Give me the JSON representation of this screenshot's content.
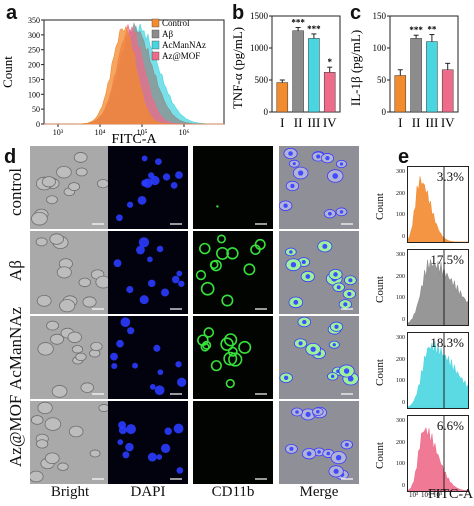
{
  "panels": {
    "a": {
      "label": "a",
      "ylabel": "Count",
      "xlabel": "FITC-A",
      "yticks": [
        "350",
        "300",
        "250",
        "200",
        "150",
        "100",
        "50",
        "0"
      ],
      "xticks": [
        "10³",
        "10⁴",
        "10⁵",
        "10⁶"
      ],
      "legend": [
        {
          "text": "Control",
          "color": "#f28a2e"
        },
        {
          "text": "Aβ",
          "color": "#8c8c8c"
        },
        {
          "text": "AcManNAz",
          "color": "#49d6e0"
        },
        {
          "text": "Az@MOF",
          "color": "#ee6b8a"
        }
      ]
    },
    "b": {
      "label": "b",
      "ylabel": "TNF-α (pg/mL)",
      "yticks": [
        "1500",
        "1000",
        "500",
        "0"
      ],
      "categories": [
        "I",
        "II",
        "III",
        "IV"
      ],
      "values": [
        460,
        1270,
        1150,
        620
      ],
      "errors": [
        40,
        50,
        70,
        80
      ],
      "stars": [
        "",
        "***",
        "***",
        "*"
      ],
      "colors": [
        "#f28a2e",
        "#8c8c8c",
        "#49d6e0",
        "#ee6b8a"
      ],
      "ylim": [
        0,
        1500
      ]
    },
    "c": {
      "label": "c",
      "ylabel": "IL-1β (pg/mL)",
      "yticks": [
        "150",
        "100",
        "50",
        "0"
      ],
      "categories": [
        "I",
        "II",
        "III",
        "IV"
      ],
      "values": [
        57,
        115,
        110,
        66
      ],
      "errors": [
        9,
        5,
        11,
        10
      ],
      "stars": [
        "",
        "***",
        "**",
        ""
      ],
      "colors": [
        "#f28a2e",
        "#8c8c8c",
        "#49d6e0",
        "#ee6b8a"
      ],
      "ylim": [
        0,
        150
      ]
    },
    "d": {
      "label": "d",
      "rows": [
        "control",
        "Aβ",
        "AcManNAz",
        "Az@MOF"
      ],
      "cols": [
        "Bright",
        "DAPI",
        "CD11b",
        "Merge"
      ]
    },
    "e": {
      "label": "e",
      "ylabel": "Count",
      "xlabel": "FITC-A",
      "yticks": [
        "300",
        "200",
        "100",
        "0"
      ],
      "xticks": [
        "10³",
        "10⁴",
        "10⁵"
      ],
      "histograms": [
        {
          "percent": "3.3%",
          "color": "#f28a2e"
        },
        {
          "percent": "17.5%",
          "color": "#8c8c8c"
        },
        {
          "percent": "18.3%",
          "color": "#49d6e0"
        },
        {
          "percent": "6.6%",
          "color": "#ee6b8a"
        }
      ]
    }
  },
  "chart_data": [
    {
      "type": "area",
      "title": "",
      "xlabel": "FITC-A",
      "ylabel": "Count",
      "ylim": [
        0,
        350
      ],
      "xscale": "log",
      "series": [
        {
          "name": "Control",
          "color": "#f28a2e"
        },
        {
          "name": "Aβ",
          "color": "#8c8c8c"
        },
        {
          "name": "AcManNAz",
          "color": "#49d6e0"
        },
        {
          "name": "Az@MOF",
          "color": "#ee6b8a"
        }
      ]
    },
    {
      "type": "bar",
      "title": "",
      "categories": [
        "I",
        "II",
        "III",
        "IV"
      ],
      "values": [
        460,
        1270,
        1150,
        620
      ],
      "ylabel": "TNF-α (pg/mL)",
      "ylim": [
        0,
        1500
      ]
    },
    {
      "type": "bar",
      "title": "",
      "categories": [
        "I",
        "II",
        "III",
        "IV"
      ],
      "values": [
        57,
        115,
        110,
        66
      ],
      "ylabel": "IL-1β (pg/mL)",
      "ylim": [
        0,
        150
      ]
    },
    {
      "type": "area",
      "title": "",
      "xlabel": "FITC-A",
      "ylabel": "Count",
      "ylim": [
        0,
        300
      ],
      "series": [
        {
          "name": "control",
          "gated_percent": 3.3
        },
        {
          "name": "Aβ",
          "gated_percent": 17.5
        },
        {
          "name": "AcManNAz",
          "gated_percent": 18.3
        },
        {
          "name": "Az@MOF",
          "gated_percent": 6.6
        }
      ]
    }
  ]
}
